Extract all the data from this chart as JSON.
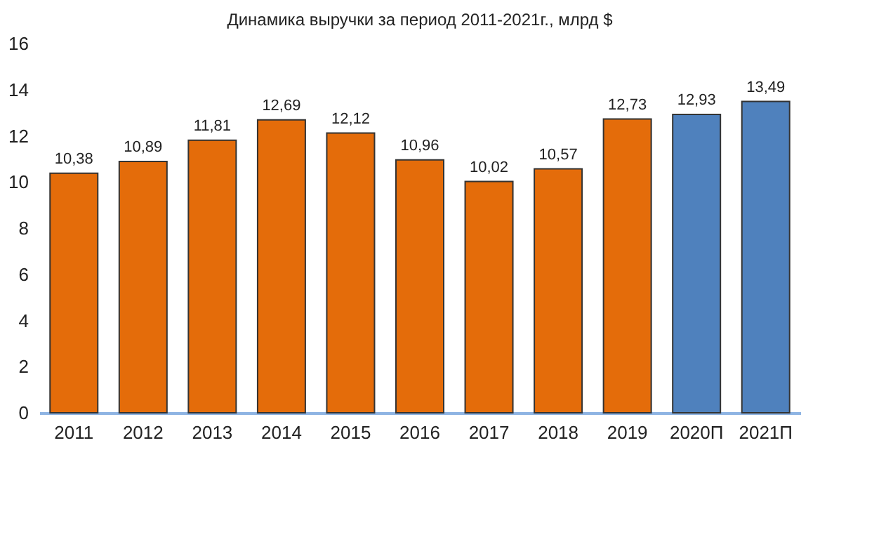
{
  "chart_data": {
    "type": "bar",
    "title": "Динамика выручки за период 2011-2021г.,  млрд $",
    "categories": [
      "2011",
      "2012",
      "2013",
      "2014",
      "2015",
      "2016",
      "2017",
      "2018",
      "2019",
      "2020П",
      "2021П"
    ],
    "values": [
      10.38,
      10.89,
      11.81,
      12.69,
      12.12,
      10.96,
      10.02,
      10.57,
      12.73,
      12.93,
      13.49
    ],
    "value_labels": [
      "10,38",
      "10,89",
      "11,81",
      "12,69",
      "12,12",
      "10,96",
      "10,02",
      "10,57",
      "12,73",
      "12,93",
      "13,49"
    ],
    "colors": [
      "#e46c0a",
      "#e46c0a",
      "#e46c0a",
      "#e46c0a",
      "#e46c0a",
      "#e46c0a",
      "#e46c0a",
      "#e46c0a",
      "#e46c0a",
      "#4f81bd",
      "#4f81bd"
    ],
    "ylim": [
      0,
      16
    ],
    "yticks": [
      0,
      2,
      4,
      6,
      8,
      10,
      12,
      14,
      16
    ],
    "grid": false
  }
}
